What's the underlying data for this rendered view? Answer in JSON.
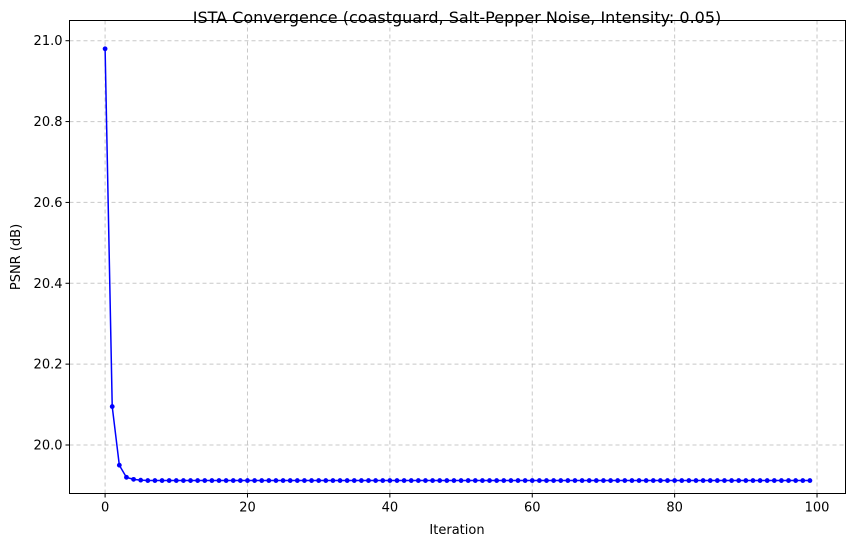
{
  "chart_data": {
    "type": "line",
    "title": "ISTA Convergence (coastguard, Salt-Pepper Noise, Intensity: 0.05)",
    "xlabel": "Iteration",
    "ylabel": "PSNR (dB)",
    "xlim": [
      -5,
      104
    ],
    "ylim": [
      19.88,
      21.05
    ],
    "xticks": [
      0,
      20,
      40,
      60,
      80,
      100
    ],
    "yticks": [
      20.0,
      20.2,
      20.4,
      20.6,
      20.8,
      21.0
    ],
    "xtick_labels": [
      "0",
      "20",
      "40",
      "60",
      "80",
      "100"
    ],
    "ytick_labels": [
      "20.0",
      "20.2",
      "20.4",
      "20.6",
      "20.8",
      "21.0"
    ],
    "grid": true,
    "series": [
      {
        "color": "#0000ff",
        "marker": "circle",
        "x_start": 0,
        "x_end": 99,
        "values": [
          20.98,
          20.095,
          19.95,
          19.92,
          19.915,
          19.913,
          19.912
        ]
      }
    ],
    "plateau_value": 19.912
  }
}
